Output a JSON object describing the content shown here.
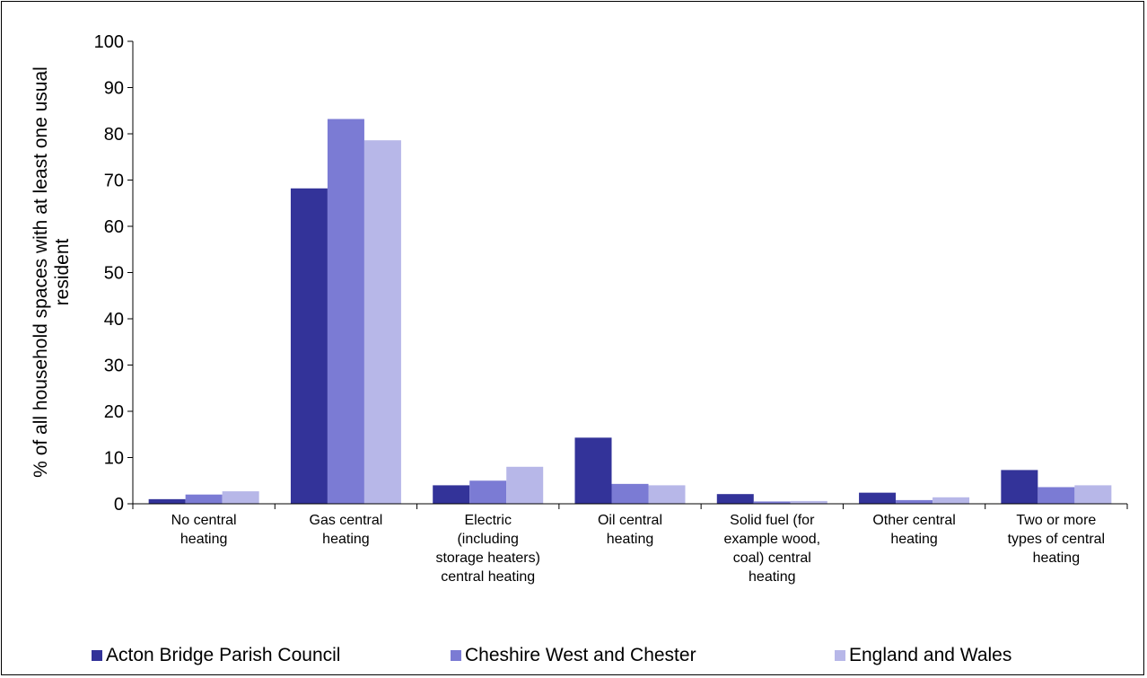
{
  "chart_data": {
    "type": "bar",
    "title": "",
    "xlabel": "",
    "ylabel": "% of all household spaces with at least one usual resident",
    "ylabel_lines": [
      "% of all household spaces with at least one usual",
      "resident"
    ],
    "ylim": [
      0,
      100
    ],
    "yticks": [
      "0",
      "10",
      "20",
      "30",
      "40",
      "50",
      "60",
      "70",
      "80",
      "90",
      "100"
    ],
    "grid": false,
    "legend_position": "bottom",
    "categories": [
      "No central heating",
      "Gas central heating",
      "Electric (including storage heaters) central heating",
      "Oil central heating",
      "Solid fuel (for example wood, coal) central heating",
      "Other central heating",
      "Two or more types of central heating"
    ],
    "category_lines": [
      [
        "No central",
        "heating"
      ],
      [
        "Gas central",
        "heating"
      ],
      [
        "Electric",
        "(including",
        "storage heaters)",
        "central heating"
      ],
      [
        "Oil central",
        "heating"
      ],
      [
        "Solid fuel (for",
        "example wood,",
        "coal) central",
        "heating"
      ],
      [
        "Other central",
        "heating"
      ],
      [
        "Two or more",
        "types of central",
        "heating"
      ]
    ],
    "series": [
      {
        "name": "Acton Bridge Parish Council",
        "color": "#333399",
        "values": [
          1.0,
          68.2,
          4.0,
          14.3,
          2.1,
          2.4,
          7.3
        ]
      },
      {
        "name": "Cheshire West and Chester",
        "color": "#7b7bd4",
        "values": [
          2.0,
          83.2,
          5.0,
          4.3,
          0.5,
          0.8,
          3.6
        ]
      },
      {
        "name": "England and Wales",
        "color": "#b7b7e8",
        "values": [
          2.7,
          78.6,
          8.0,
          4.0,
          0.6,
          1.4,
          4.0
        ]
      }
    ]
  }
}
